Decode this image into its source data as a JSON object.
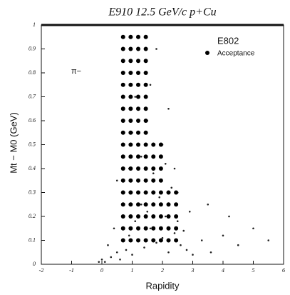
{
  "chart_data": {
    "type": "scatter",
    "title": "E910  12.5 GeV/c  p+Cu",
    "x_label": "Rapidity",
    "y_label": "Mt − M0 (GeV)",
    "annotation": "π−",
    "legend_title": "E802",
    "xlim": [
      -2,
      6
    ],
    "xticks": [
      -2,
      -1,
      0,
      1,
      2,
      3,
      4,
      5,
      6
    ],
    "ylim": [
      0,
      1
    ],
    "yticks": [
      0,
      0.1,
      0.2,
      0.3,
      0.4,
      0.5,
      0.6,
      0.7,
      0.8,
      0.9,
      1
    ],
    "series": [
      {
        "color": "#222222",
        "x": [
          0.1,
          0.3,
          0.5,
          0.2,
          0.6,
          0.8,
          1.0,
          1.2,
          0.9,
          1.4,
          1.6,
          1.8,
          2.0,
          2.2,
          2.4,
          2.6,
          2.8,
          3.0,
          3.3,
          3.6,
          4.0,
          4.5,
          5.0,
          0.4,
          0.7,
          1.1,
          1.3,
          1.5,
          1.7,
          1.9,
          2.1,
          2.3,
          2.5,
          2.7,
          0.5,
          0.9,
          1.3,
          1.7,
          2.1,
          2.5,
          2.9,
          1.0,
          1.5,
          2.0,
          2.4,
          1.1,
          1.6,
          2.2,
          1.2,
          1.8,
          3.5,
          4.2,
          5.5,
          0.0,
          -0.1
        ],
        "y": [
          0.01,
          0.03,
          0.05,
          0.08,
          0.02,
          0.06,
          0.04,
          0.1,
          0.12,
          0.07,
          0.15,
          0.09,
          0.11,
          0.05,
          0.13,
          0.08,
          0.06,
          0.04,
          0.1,
          0.05,
          0.12,
          0.08,
          0.15,
          0.15,
          0.2,
          0.18,
          0.25,
          0.22,
          0.3,
          0.28,
          0.2,
          0.32,
          0.18,
          0.14,
          0.35,
          0.4,
          0.45,
          0.38,
          0.42,
          0.3,
          0.22,
          0.55,
          0.6,
          0.5,
          0.4,
          0.7,
          0.75,
          0.65,
          0.85,
          0.9,
          0.25,
          0.2,
          0.1,
          0.02,
          0.01
        ]
      },
      {
        "name": "Acceptance",
        "color": "#000000",
        "x": [
          0.7,
          0.95,
          1.2,
          1.45,
          0.7,
          0.95,
          1.2,
          1.45,
          0.7,
          0.95,
          1.2,
          1.45,
          0.7,
          0.95,
          1.2,
          1.45,
          0.7,
          0.95,
          1.2,
          1.45,
          0.7,
          0.95,
          1.2,
          1.45,
          0.7,
          0.95,
          1.2,
          1.45,
          0.7,
          0.95,
          1.2,
          1.45,
          0.7,
          0.95,
          1.2,
          1.45,
          0.7,
          0.95,
          1.2,
          1.45,
          1.7,
          1.95,
          0.7,
          0.95,
          1.2,
          1.45,
          1.7,
          1.95,
          0.7,
          0.95,
          1.2,
          1.45,
          1.7,
          1.95,
          0.7,
          0.95,
          1.2,
          1.45,
          1.7,
          1.95,
          0.7,
          0.95,
          1.2,
          1.45,
          1.7,
          1.95,
          2.2,
          2.45,
          0.7,
          0.95,
          1.2,
          1.45,
          1.7,
          1.95,
          2.2,
          2.45,
          0.7,
          0.95,
          1.2,
          1.45,
          1.7,
          1.95,
          2.2,
          2.45,
          0.7,
          0.95,
          1.2,
          1.45,
          1.7,
          1.95,
          2.2,
          2.45,
          0.7,
          0.95,
          1.2,
          1.45,
          1.7,
          1.95,
          2.2,
          2.45
        ],
        "y": [
          0.95,
          0.95,
          0.95,
          0.95,
          0.9,
          0.9,
          0.9,
          0.9,
          0.85,
          0.85,
          0.85,
          0.85,
          0.8,
          0.8,
          0.8,
          0.8,
          0.75,
          0.75,
          0.75,
          0.75,
          0.7,
          0.7,
          0.7,
          0.7,
          0.65,
          0.65,
          0.65,
          0.65,
          0.6,
          0.6,
          0.6,
          0.6,
          0.55,
          0.55,
          0.55,
          0.55,
          0.5,
          0.5,
          0.5,
          0.5,
          0.5,
          0.5,
          0.45,
          0.45,
          0.45,
          0.45,
          0.45,
          0.45,
          0.4,
          0.4,
          0.4,
          0.4,
          0.4,
          0.4,
          0.35,
          0.35,
          0.35,
          0.35,
          0.35,
          0.35,
          0.3,
          0.3,
          0.3,
          0.3,
          0.3,
          0.3,
          0.3,
          0.3,
          0.25,
          0.25,
          0.25,
          0.25,
          0.25,
          0.25,
          0.25,
          0.25,
          0.2,
          0.2,
          0.2,
          0.2,
          0.2,
          0.2,
          0.2,
          0.2,
          0.15,
          0.15,
          0.15,
          0.15,
          0.15,
          0.15,
          0.15,
          0.15,
          0.1,
          0.1,
          0.1,
          0.1,
          0.1,
          0.1,
          0.1,
          0.1
        ]
      }
    ]
  }
}
